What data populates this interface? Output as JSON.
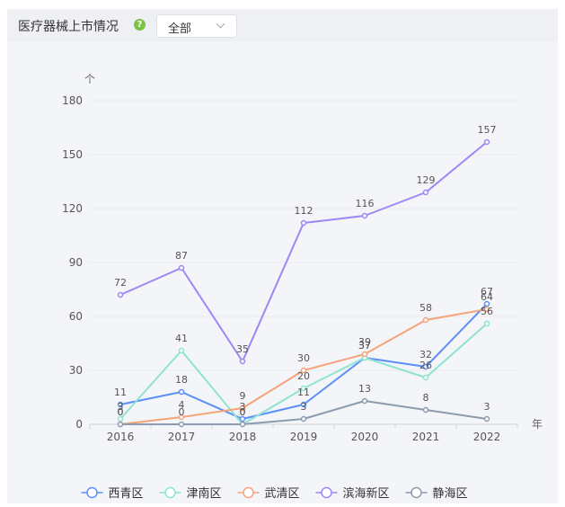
{
  "header": {
    "title": "医疗器械上市情况",
    "help_icon": "question-circle-icon",
    "help_glyph": "?",
    "filter": {
      "selected": "全部"
    }
  },
  "chart_data": {
    "type": "line",
    "ylabel": "个",
    "xlabel": "年",
    "categories": [
      "2016",
      "2017",
      "2018",
      "2019",
      "2020",
      "2021",
      "2022"
    ],
    "yticks": [
      "0",
      "30",
      "60",
      "90",
      "120",
      "150",
      "180"
    ],
    "ylim": [
      0,
      180
    ],
    "grid": "horizontal",
    "legend_position": "bottom",
    "series": [
      {
        "name": "西青区",
        "color": "#5b8ff9",
        "values": [
          11,
          18,
          3,
          11,
          37,
          32,
          67
        ]
      },
      {
        "name": "津南区",
        "color": "#8fe3cf",
        "values": [
          3,
          41,
          0,
          20,
          37,
          26,
          56
        ]
      },
      {
        "name": "武清区",
        "color": "#f6a37a",
        "values": [
          0,
          4,
          9,
          30,
          39,
          58,
          64
        ]
      },
      {
        "name": "滨海新区",
        "color": "#9b87f5",
        "values": [
          72,
          87,
          35,
          112,
          116,
          129,
          157
        ]
      },
      {
        "name": "静海区",
        "color": "#8c9bb0",
        "values": [
          0,
          0,
          0,
          3,
          13,
          8,
          3
        ]
      }
    ]
  }
}
